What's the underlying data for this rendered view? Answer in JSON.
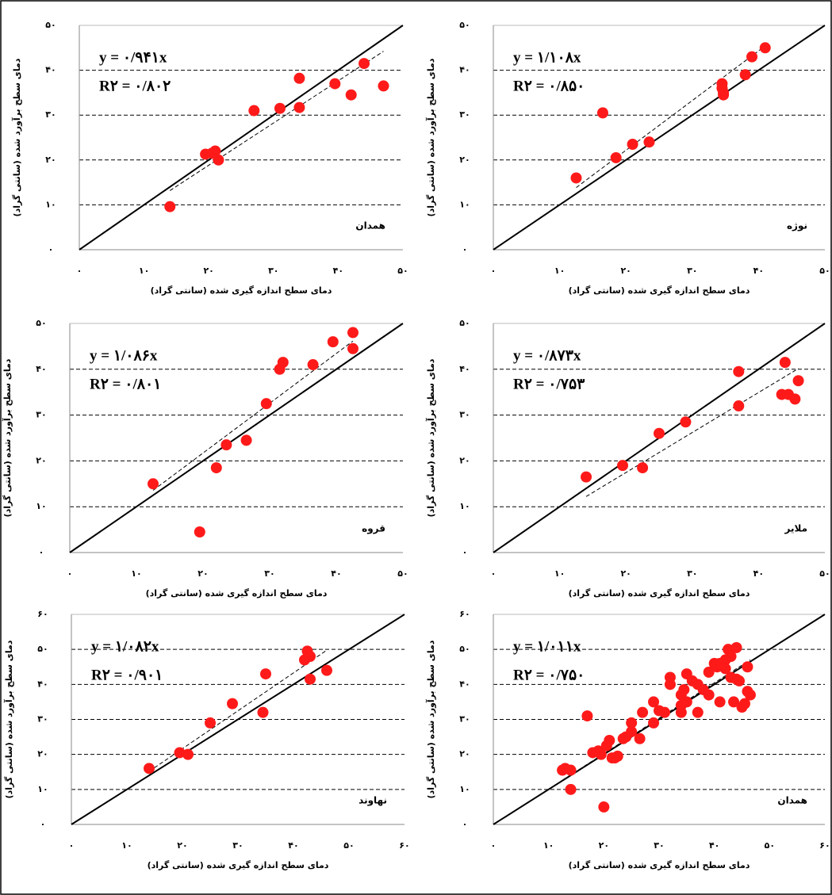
{
  "chart_data": [
    {
      "type": "scatter",
      "station": "همدان",
      "x_label": "دمای سطح اندازه گیری شده (سانتی گراد)",
      "y_label": "دمای سطح برآورد شده (سانتی گراد)",
      "trendline": {
        "slope": 0.941,
        "label": "y = ۰/۹۴۱x"
      },
      "r2_label": "R۲ = ۰/۸۰۲",
      "color": "#ff1a1a",
      "xlim": [
        0,
        50
      ],
      "ylim": [
        0,
        50
      ],
      "xticks": [
        {
          "value": 0,
          "label": "۰"
        },
        {
          "value": 10,
          "label": "۱۰"
        },
        {
          "value": 20,
          "label": "۲۰"
        },
        {
          "value": 30,
          "label": "۳۰"
        },
        {
          "value": 40,
          "label": "۴۰"
        },
        {
          "value": 50,
          "label": "۵۰"
        }
      ],
      "yticks": [
        {
          "value": 0,
          "label": "۰"
        },
        {
          "value": 10,
          "label": "۱۰"
        },
        {
          "value": 20,
          "label": "۲۰"
        },
        {
          "value": 30,
          "label": "۳۰"
        },
        {
          "value": 40,
          "label": "۴۰"
        },
        {
          "value": 50,
          "label": "۵۰"
        }
      ],
      "x": [
        14,
        19.5,
        20.5,
        21,
        21.5,
        27,
        31,
        34,
        34,
        39.5,
        42,
        44,
        47
      ],
      "values": [
        9.6,
        21.3,
        21.5,
        22,
        20,
        31,
        31.5,
        31.7,
        38.2,
        37,
        34.5,
        41.5,
        36.5
      ]
    },
    {
      "type": "scatter",
      "station": "نوژه",
      "x_label": "دمای سطح اندازه گیری شده (سانتی گراد)",
      "y_label": "دمای سطح برآورد شده (سانتی گراد)",
      "trendline": {
        "slope": 1.108,
        "label": "y = ۱/۱۰۸x"
      },
      "r2_label": "R۲ = ۰/۸۵۰",
      "color": "#ff1a1a",
      "xlim": [
        0,
        50
      ],
      "ylim": [
        0,
        50
      ],
      "xticks": [
        {
          "value": 0,
          "label": "۰"
        },
        {
          "value": 10,
          "label": "۱۰"
        },
        {
          "value": 20,
          "label": "۲۰"
        },
        {
          "value": 30,
          "label": "۳۰"
        },
        {
          "value": 40,
          "label": "۴۰"
        },
        {
          "value": 50,
          "label": "۵۰"
        }
      ],
      "yticks": [
        {
          "value": 0,
          "label": "۰"
        },
        {
          "value": 10,
          "label": "۱۰"
        },
        {
          "value": 20,
          "label": "۲۰"
        },
        {
          "value": 30,
          "label": "۳۰"
        },
        {
          "value": 40,
          "label": "۴۰"
        },
        {
          "value": 50,
          "label": "۵۰"
        }
      ],
      "x": [
        12.5,
        16.5,
        18.5,
        21,
        23.5,
        34.5,
        34.5,
        34.7,
        34.7,
        38,
        39,
        41
      ],
      "values": [
        16,
        30.5,
        20.5,
        23.5,
        24,
        37,
        36,
        34.5,
        35,
        39,
        43,
        45
      ]
    },
    {
      "type": "scatter",
      "station": "قروه",
      "x_label": "دمای سطح اندازه گیری شده (سانتی گراد)",
      "y_label": "دمای سطح برآورد شده (سانتی گراد)",
      "trendline": {
        "slope": 1.086,
        "label": "y = ۱/۰۸۶x"
      },
      "r2_label": "R۲ = ۰/۸۰۱",
      "color": "#ff1a1a",
      "xlim": [
        0,
        50
      ],
      "ylim": [
        0,
        50
      ],
      "xticks": [
        {
          "value": 0,
          "label": "۰"
        },
        {
          "value": 10,
          "label": "۱۰"
        },
        {
          "value": 20,
          "label": "۲۰"
        },
        {
          "value": 30,
          "label": "۳۰"
        },
        {
          "value": 40,
          "label": "۴۰"
        },
        {
          "value": 50,
          "label": "۵۰"
        }
      ],
      "yticks": [
        {
          "value": 0,
          "label": "۰"
        },
        {
          "value": 10,
          "label": "۱۰"
        },
        {
          "value": 20,
          "label": "۲۰"
        },
        {
          "value": 30,
          "label": "۳۰"
        },
        {
          "value": 40,
          "label": "۴۰"
        },
        {
          "value": 50,
          "label": "۵۰"
        }
      ],
      "x": [
        12.5,
        19.5,
        22,
        23.5,
        26.5,
        29.5,
        31.5,
        32,
        36.5,
        39.5,
        42.5,
        42.5
      ],
      "values": [
        15,
        4.5,
        18.5,
        23.5,
        24.5,
        32.5,
        40,
        41.5,
        41,
        46,
        44.5,
        48
      ]
    },
    {
      "type": "scatter",
      "station": "ملایر",
      "x_label": "دمای سطح اندازه گیری شده (سانتی گراد)",
      "y_label": "دمای سطح برآورد شده (سانتی گراد)",
      "trendline": {
        "slope": 0.873,
        "label": "y = ۰/۸۷۳x"
      },
      "r2_label": "R۲ = ۰/۷۵۳",
      "color": "#ff1a1a",
      "xlim": [
        0,
        50
      ],
      "ylim": [
        0,
        50
      ],
      "xticks": [
        {
          "value": 0,
          "label": "۰"
        },
        {
          "value": 10,
          "label": "۱۰"
        },
        {
          "value": 20,
          "label": "۲۰"
        },
        {
          "value": 30,
          "label": "۳۰"
        },
        {
          "value": 40,
          "label": "۴۰"
        },
        {
          "value": 50,
          "label": "۵۰"
        }
      ],
      "yticks": [
        {
          "value": 0,
          "label": "۰"
        },
        {
          "value": 10,
          "label": "۱۰"
        },
        {
          "value": 20,
          "label": "۲۰"
        },
        {
          "value": 30,
          "label": "۳۰"
        },
        {
          "value": 40,
          "label": "۴۰"
        },
        {
          "value": 50,
          "label": "۵۰"
        }
      ],
      "x": [
        14,
        19.5,
        22.5,
        25,
        29,
        37,
        37,
        43.5,
        44,
        44.5,
        45.5,
        46
      ],
      "values": [
        16.5,
        19,
        18.5,
        26,
        28.5,
        32,
        39.5,
        34.5,
        41.5,
        34.5,
        33.5,
        37.5
      ]
    },
    {
      "type": "scatter",
      "station": "نهاوند",
      "x_label": "دمای سطح اندازه گیری شده (سانتی گراد)",
      "y_label": "دمای سطح برآورد شده (سانتی گراد)",
      "trendline": {
        "slope": 1.082,
        "label": "y = ۱/۰۸۲x"
      },
      "r2_label": "R۲ = ۰/۹۰۱",
      "color": "#ff1a1a",
      "xlim": [
        0,
        60
      ],
      "ylim": [
        0,
        60
      ],
      "xticks": [
        {
          "value": 0,
          "label": "۰"
        },
        {
          "value": 10,
          "label": "۱۰"
        },
        {
          "value": 20,
          "label": "۲۰"
        },
        {
          "value": 30,
          "label": "۳۰"
        },
        {
          "value": 40,
          "label": "۴۰"
        },
        {
          "value": 50,
          "label": "۵۰"
        },
        {
          "value": 60,
          "label": "۶۰"
        }
      ],
      "yticks": [
        {
          "value": 0,
          "label": "۰"
        },
        {
          "value": 10,
          "label": "۱۰"
        },
        {
          "value": 20,
          "label": "۲۰"
        },
        {
          "value": 30,
          "label": "۳۰"
        },
        {
          "value": 40,
          "label": "۴۰"
        },
        {
          "value": 50,
          "label": "۵۰"
        },
        {
          "value": 60,
          "label": "۶۰"
        }
      ],
      "x": [
        14,
        19.5,
        21,
        25,
        29,
        34.5,
        35,
        42,
        42.5,
        43,
        43,
        46
      ],
      "values": [
        16,
        20.5,
        20,
        29,
        34.5,
        32,
        43,
        47,
        49.5,
        48,
        41.5,
        44
      ]
    },
    {
      "type": "scatter",
      "station": "همدان",
      "x_label": "دمای سطح اندازه گیری شده (سانتی گراد)",
      "y_label": "دمای سطح برآورد شده (سانتی گراد)",
      "trendline": {
        "slope": 1.011,
        "label": "y = ۱/۰۱۱x"
      },
      "r2_label": "R۲ = ۰/۷۵۰",
      "color": "#ff1a1a",
      "xlim": [
        0,
        60
      ],
      "ylim": [
        0,
        60
      ],
      "xticks": [
        {
          "value": 0,
          "label": "۰"
        },
        {
          "value": 10,
          "label": "۱۰"
        },
        {
          "value": 20,
          "label": "۲۰"
        },
        {
          "value": 30,
          "label": "۳۰"
        },
        {
          "value": 40,
          "label": "۴۰"
        },
        {
          "value": 50,
          "label": "۵۰"
        },
        {
          "value": 60,
          "label": "۶۰"
        }
      ],
      "yticks": [
        {
          "value": 0,
          "label": "۰"
        },
        {
          "value": 10,
          "label": "۱۰"
        },
        {
          "value": 20,
          "label": "۲۰"
        },
        {
          "value": 30,
          "label": "۳۰"
        },
        {
          "value": 40,
          "label": "۴۰"
        },
        {
          "value": 50,
          "label": "۵۰"
        },
        {
          "value": 60,
          "label": "۶۰"
        }
      ],
      "x": [
        12.5,
        13,
        14,
        14,
        17,
        18,
        19,
        19.5,
        20,
        20.5,
        21,
        21.5,
        22,
        22.5,
        23.5,
        24,
        25,
        25,
        26.5,
        27,
        29,
        29,
        30,
        31,
        32,
        32,
        34,
        34,
        34,
        34.5,
        35,
        35,
        36,
        37,
        37,
        38,
        39,
        39,
        40,
        40.5,
        41,
        41,
        42,
        42,
        42.5,
        43,
        43,
        43.5,
        44,
        44,
        44.5,
        45,
        45.5,
        46,
        46,
        46.5
      ],
      "values": [
        15.5,
        16,
        15.5,
        10,
        31,
        20.5,
        21,
        20,
        5,
        22.5,
        24,
        19,
        19,
        19.5,
        24.5,
        25,
        26.5,
        29,
        24.5,
        32,
        29,
        35,
        32.5,
        32,
        40,
        42,
        32,
        34,
        37,
        38.5,
        35,
        43,
        41,
        32,
        40,
        38.5,
        37,
        43.5,
        46,
        45,
        46,
        35,
        44.5,
        47,
        50,
        42,
        48,
        35,
        41.5,
        50.5,
        41,
        33.5,
        34.5,
        38,
        45,
        37
      ]
    }
  ]
}
